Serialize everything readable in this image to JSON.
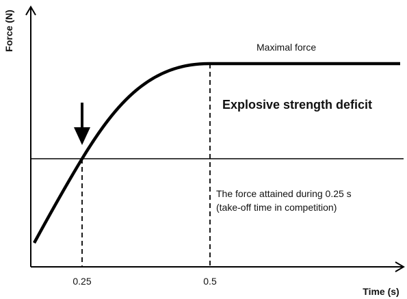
{
  "axes": {
    "y_label": "Force (N)",
    "x_label": "Time (s)",
    "x_ticks": [
      "0.25",
      "0.5"
    ]
  },
  "annotations": {
    "maximal_force": "Maximal force",
    "deficit": "Explosive strength deficit",
    "force_attained": [
      "The force attained during 0.25 s",
      "(take-off time in competition)"
    ]
  }
}
